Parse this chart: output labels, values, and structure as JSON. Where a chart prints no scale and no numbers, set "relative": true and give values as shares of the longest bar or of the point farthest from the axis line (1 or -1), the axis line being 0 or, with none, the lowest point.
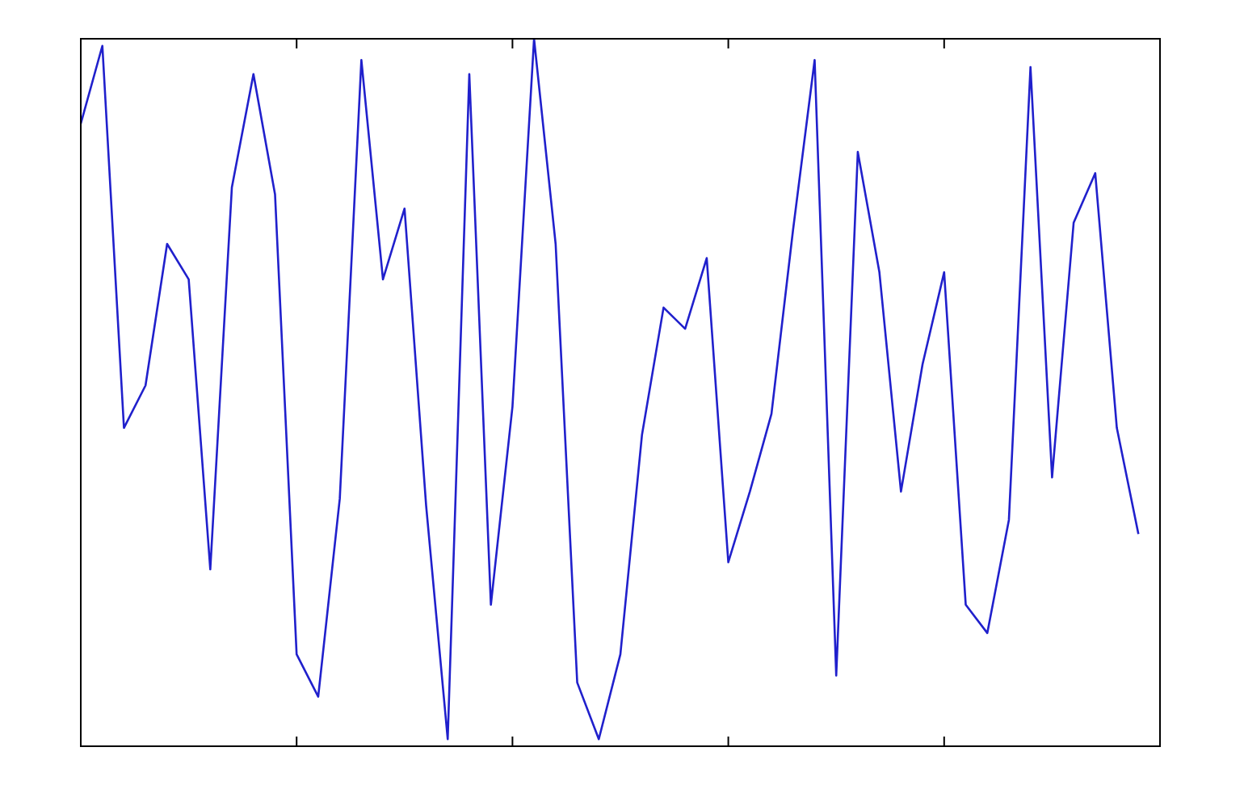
{
  "chart_data": {
    "type": "line",
    "relative": true,
    "legend": false,
    "marker": "none",
    "line_style": "solid",
    "categories": [
      null,
      null,
      null,
      null,
      null,
      null,
      null,
      null,
      null,
      null,
      null,
      null,
      null,
      null,
      null,
      null,
      null,
      null,
      null,
      null,
      null,
      null,
      null,
      null,
      null,
      null,
      null,
      null,
      null,
      null,
      null,
      null,
      null,
      null,
      null,
      null,
      null,
      null,
      null,
      null,
      null,
      null,
      null,
      null,
      null,
      null,
      null,
      null,
      null,
      null
    ],
    "series": [
      {
        "color": "#2020cc",
        "values": [
          0.88,
          0.99,
          0.45,
          0.51,
          0.71,
          0.66,
          0.25,
          0.79,
          0.95,
          0.78,
          0.13,
          0.07,
          0.35,
          0.97,
          0.66,
          0.76,
          0.34,
          0.01,
          0.95,
          0.2,
          0.48,
          1,
          0.71,
          0.09,
          0.01,
          0.13,
          0.44,
          0.62,
          0.59,
          0.69,
          0.26,
          0.36,
          0.47,
          0.73,
          0.97,
          0.1,
          0.84,
          0.67,
          0.36,
          0.54,
          0.67,
          0.2,
          0.16,
          0.32,
          0.96,
          0.38,
          0.74,
          0.81,
          0.45,
          0.3
        ]
      }
    ]
  }
}
